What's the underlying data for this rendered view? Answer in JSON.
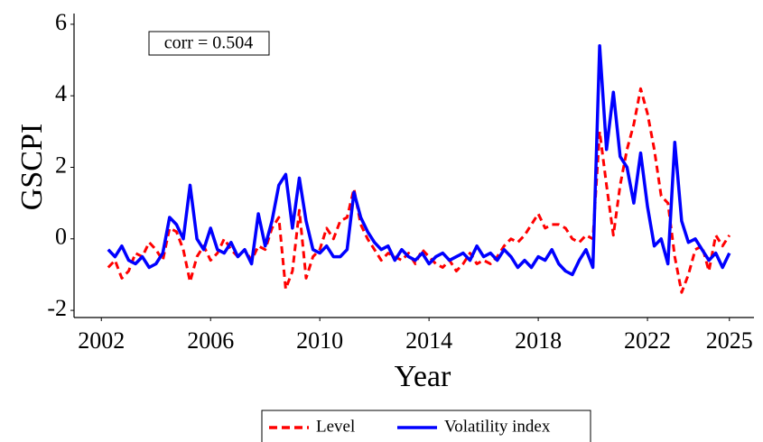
{
  "chart_data": {
    "type": "line",
    "y_label": "GSCPI",
    "x_label": "Year",
    "annotation": "corr = 0.504",
    "xlim": [
      2001,
      2025.9
    ],
    "ylim": [
      -2.2,
      6.3
    ],
    "xticks": [
      2002,
      2006,
      2010,
      2014,
      2018,
      2022,
      2025
    ],
    "yticks": [
      -2,
      0,
      2,
      4,
      6
    ],
    "legend": "bottom",
    "x": [
      2002.25,
      2002.5,
      2002.75,
      2003,
      2003.25,
      2003.5,
      2003.75,
      2004,
      2004.25,
      2004.5,
      2004.75,
      2005,
      2005.25,
      2005.5,
      2005.75,
      2006,
      2006.25,
      2006.5,
      2006.75,
      2007,
      2007.25,
      2007.5,
      2007.75,
      2008,
      2008.25,
      2008.5,
      2008.75,
      2009,
      2009.25,
      2009.5,
      2009.75,
      2010,
      2010.25,
      2010.5,
      2010.75,
      2011,
      2011.25,
      2011.5,
      2011.75,
      2012,
      2012.25,
      2012.5,
      2012.75,
      2013,
      2013.25,
      2013.5,
      2013.75,
      2014,
      2014.25,
      2014.5,
      2014.75,
      2015,
      2015.25,
      2015.5,
      2015.75,
      2016,
      2016.25,
      2016.5,
      2016.75,
      2017,
      2017.25,
      2017.5,
      2017.75,
      2018,
      2018.25,
      2018.5,
      2018.75,
      2019,
      2019.25,
      2019.5,
      2019.75,
      2020,
      2020.25,
      2020.5,
      2020.75,
      2021,
      2021.25,
      2021.5,
      2021.75,
      2022,
      2022.25,
      2022.5,
      2022.75,
      2023,
      2023.25,
      2023.5,
      2023.75,
      2024,
      2024.25,
      2024.5,
      2024.75,
      2025
    ],
    "series": [
      {
        "name": "Level",
        "color": "#ff0000",
        "dash": true,
        "values": [
          -0.8,
          -0.6,
          -1.1,
          -0.9,
          -0.4,
          -0.5,
          -0.1,
          -0.3,
          -0.6,
          0.3,
          0.2,
          -0.3,
          -1.2,
          -0.5,
          -0.2,
          -0.6,
          -0.4,
          0.0,
          -0.3,
          -0.5,
          -0.3,
          -0.6,
          -0.2,
          -0.3,
          0.3,
          0.6,
          -1.4,
          -0.9,
          0.8,
          -1.1,
          -0.5,
          -0.3,
          0.3,
          0.0,
          0.5,
          0.6,
          1.4,
          0.4,
          0.0,
          -0.3,
          -0.6,
          -0.4,
          -0.5,
          -0.6,
          -0.4,
          -0.7,
          -0.3,
          -0.5,
          -0.7,
          -0.8,
          -0.6,
          -0.9,
          -0.7,
          -0.4,
          -0.7,
          -0.6,
          -0.7,
          -0.5,
          -0.2,
          0.0,
          -0.1,
          0.1,
          0.4,
          0.7,
          0.3,
          0.4,
          0.4,
          0.3,
          0.0,
          -0.1,
          0.1,
          0.0,
          3.0,
          1.5,
          0.1,
          1.5,
          2.5,
          3.2,
          4.2,
          3.5,
          2.5,
          1.2,
          1.0,
          -0.5,
          -1.5,
          -1.0,
          -0.3,
          -0.2,
          -0.9,
          0.1,
          -0.2,
          0.1
        ]
      },
      {
        "name": "Volatility index",
        "color": "#0000ff",
        "dash": false,
        "values": [
          -0.3,
          -0.5,
          -0.2,
          -0.6,
          -0.7,
          -0.5,
          -0.8,
          -0.7,
          -0.4,
          0.6,
          0.4,
          0.0,
          1.5,
          0.0,
          -0.3,
          0.3,
          -0.3,
          -0.4,
          -0.1,
          -0.5,
          -0.3,
          -0.7,
          0.7,
          -0.2,
          0.5,
          1.5,
          1.8,
          0.3,
          1.7,
          0.5,
          -0.3,
          -0.4,
          -0.2,
          -0.5,
          -0.5,
          -0.3,
          1.3,
          0.6,
          0.2,
          -0.1,
          -0.3,
          -0.2,
          -0.6,
          -0.3,
          -0.5,
          -0.6,
          -0.4,
          -0.7,
          -0.5,
          -0.4,
          -0.6,
          -0.5,
          -0.4,
          -0.6,
          -0.2,
          -0.5,
          -0.4,
          -0.6,
          -0.3,
          -0.5,
          -0.8,
          -0.6,
          -0.8,
          -0.5,
          -0.6,
          -0.3,
          -0.7,
          -0.9,
          -1.0,
          -0.6,
          -0.3,
          -0.8,
          5.4,
          2.5,
          4.1,
          2.3,
          2.0,
          1.0,
          2.4,
          0.9,
          -0.2,
          0.0,
          -0.7,
          2.7,
          0.5,
          -0.1,
          0.0,
          -0.3,
          -0.6,
          -0.4,
          -0.8,
          -0.4
        ]
      }
    ]
  }
}
